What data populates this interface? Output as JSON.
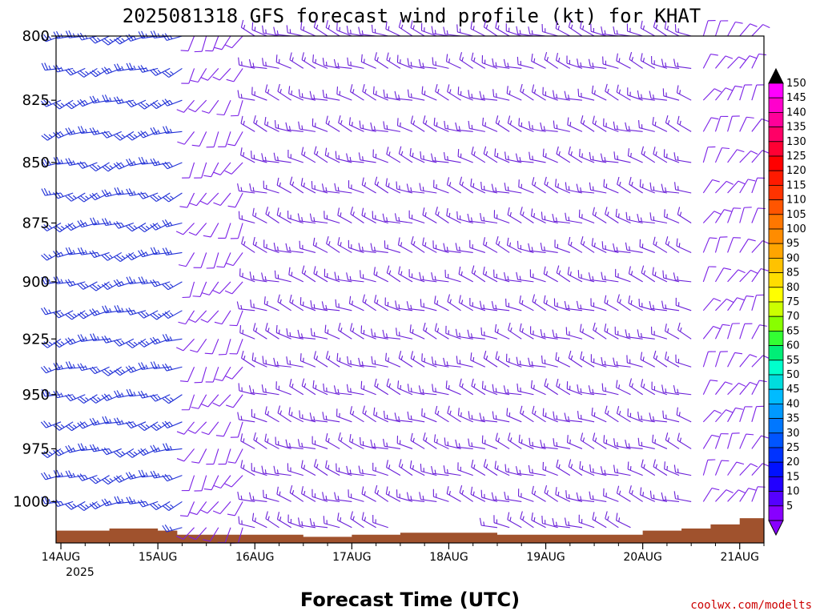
{
  "chart_data": {
    "type": "wind-profile",
    "title": "2025081318 GFS forecast wind profile (kt) for KHAT",
    "xlabel": "Forecast Time (UTC)",
    "ylabel": "",
    "x_ticks": [
      "14AUG",
      "15AUG",
      "16AUG",
      "17AUG",
      "18AUG",
      "19AUG",
      "20AUG",
      "21AUG"
    ],
    "x_year_label": "2025",
    "x_range_days": [
      -0.05,
      7.25
    ],
    "y_ticks": [
      800,
      825,
      850,
      875,
      900,
      925,
      950,
      975,
      1000
    ],
    "y_range_hpa": [
      800,
      1020
    ],
    "y_scale": "log-pressure",
    "speed_unit": "kt",
    "levels_hpa": [
      800,
      812.5,
      825,
      837.5,
      850,
      862.5,
      875,
      887.5,
      900,
      912.5,
      925,
      937.5,
      950,
      962.5,
      975,
      987.5,
      1000,
      1012.5
    ],
    "regimes": [
      {
        "from_day": 0.0,
        "to_day": 1.3,
        "direction_deg": 250,
        "speed_kt": 25,
        "color": "#1f2fd6"
      },
      {
        "from_day": 1.3,
        "to_day": 2.0,
        "direction_deg": 210,
        "speed_kt": 10,
        "color": "#7a1fe6"
      },
      {
        "from_day": 2.0,
        "to_day": 6.55,
        "direction_deg": 290,
        "speed_kt": 15,
        "color": "#6a1fd8"
      },
      {
        "from_day": 6.55,
        "to_day": 7.25,
        "direction_deg": 30,
        "speed_kt": 10,
        "color": "#7a1fe6"
      }
    ],
    "terrain_hpa": [
      {
        "day": -0.05,
        "p": 1014
      },
      {
        "day": 0.5,
        "p": 1013
      },
      {
        "day": 1.0,
        "p": 1014
      },
      {
        "day": 1.2,
        "p": 1016
      },
      {
        "day": 2.0,
        "p": 1016
      },
      {
        "day": 2.5,
        "p": 1017
      },
      {
        "day": 3.0,
        "p": 1016
      },
      {
        "day": 3.5,
        "p": 1015
      },
      {
        "day": 4.0,
        "p": 1015
      },
      {
        "day": 4.5,
        "p": 1016
      },
      {
        "day": 5.0,
        "p": 1016
      },
      {
        "day": 5.5,
        "p": 1016
      },
      {
        "day": 6.0,
        "p": 1014
      },
      {
        "day": 6.4,
        "p": 1013
      },
      {
        "day": 6.7,
        "p": 1011
      },
      {
        "day": 7.0,
        "p": 1008
      },
      {
        "day": 7.25,
        "p": 1008
      }
    ],
    "terrain_color": "#a0522d",
    "legend_placement": "right",
    "colorbar": {
      "values": [
        150,
        145,
        140,
        135,
        130,
        125,
        120,
        115,
        110,
        105,
        100,
        95,
        90,
        85,
        80,
        75,
        70,
        65,
        60,
        55,
        50,
        45,
        40,
        35,
        30,
        25,
        20,
        15,
        10,
        5
      ],
      "colors": [
        "#ff00ff",
        "#ff00cc",
        "#ff0099",
        "#ff0066",
        "#ff0033",
        "#ff0000",
        "#ff1a00",
        "#ff3300",
        "#ff5500",
        "#ff7700",
        "#ff8c00",
        "#ffa500",
        "#ffc200",
        "#ffdd00",
        "#ffff00",
        "#ccff00",
        "#88ff00",
        "#33ff33",
        "#00ee77",
        "#00ffcc",
        "#00dddd",
        "#00bbff",
        "#0099ff",
        "#0077ff",
        "#0055ff",
        "#0033ff",
        "#0011ff",
        "#2200ff",
        "#5500ff",
        "#8800ff"
      ],
      "top_arrow_color": "#000000",
      "bottom_arrow_color": "#8800ff"
    }
  },
  "credit": "coolwx.com/modelts",
  "credit_color": "#cc0000"
}
